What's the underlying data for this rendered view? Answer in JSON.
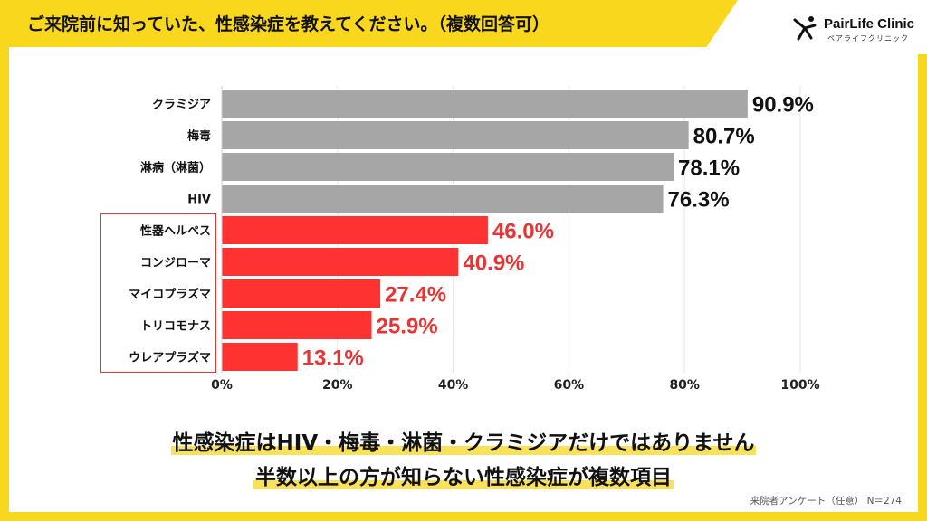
{
  "header": {
    "title": "ご来院前に知っていた、性感染症を教えてください。（複数回答可）"
  },
  "logo": {
    "name": "PairLife Clinic",
    "subtitle": "ペアライフクリニック"
  },
  "chart_data": {
    "type": "bar",
    "orientation": "horizontal",
    "categories": [
      "クラミジア",
      "梅毒",
      "淋病（淋菌）",
      "HIV",
      "性器ヘルペス",
      "コンジローマ",
      "マイコプラズマ",
      "トリコモナス",
      "ウレアプラズマ"
    ],
    "values": [
      90.9,
      80.7,
      78.1,
      76.3,
      46.0,
      40.9,
      27.4,
      25.9,
      13.1
    ],
    "value_labels": [
      "90.9%",
      "80.7%",
      "78.1%",
      "76.3%",
      "46.0%",
      "40.9%",
      "27.4%",
      "25.9%",
      "13.1%"
    ],
    "bar_colors": [
      "#a6a6a6",
      "#a6a6a6",
      "#a6a6a6",
      "#a6a6a6",
      "#ff3232",
      "#ff3232",
      "#ff3232",
      "#ff3232",
      "#ff3232"
    ],
    "label_colors": [
      "#111111",
      "#111111",
      "#111111",
      "#111111",
      "#e53535",
      "#e53535",
      "#e53535",
      "#e53535",
      "#e53535"
    ],
    "xlim": [
      0,
      100
    ],
    "xticks": [
      "0%",
      "20%",
      "40%",
      "60%",
      "80%",
      "100%"
    ],
    "grid": true,
    "highlight_group": "categories 5-9 outlined in red"
  },
  "message": {
    "line1": "性感染症はHIV・梅毒・淋菌・クラミジアだけではありません",
    "line2": "半数以上の方が知らない性感染症が複数項目"
  },
  "footnote": "来院者アンケート（任意） N＝274",
  "colors": {
    "background": "#f9d71c",
    "accent_red": "#e53535",
    "neutral_bar": "#a6a6a6"
  }
}
